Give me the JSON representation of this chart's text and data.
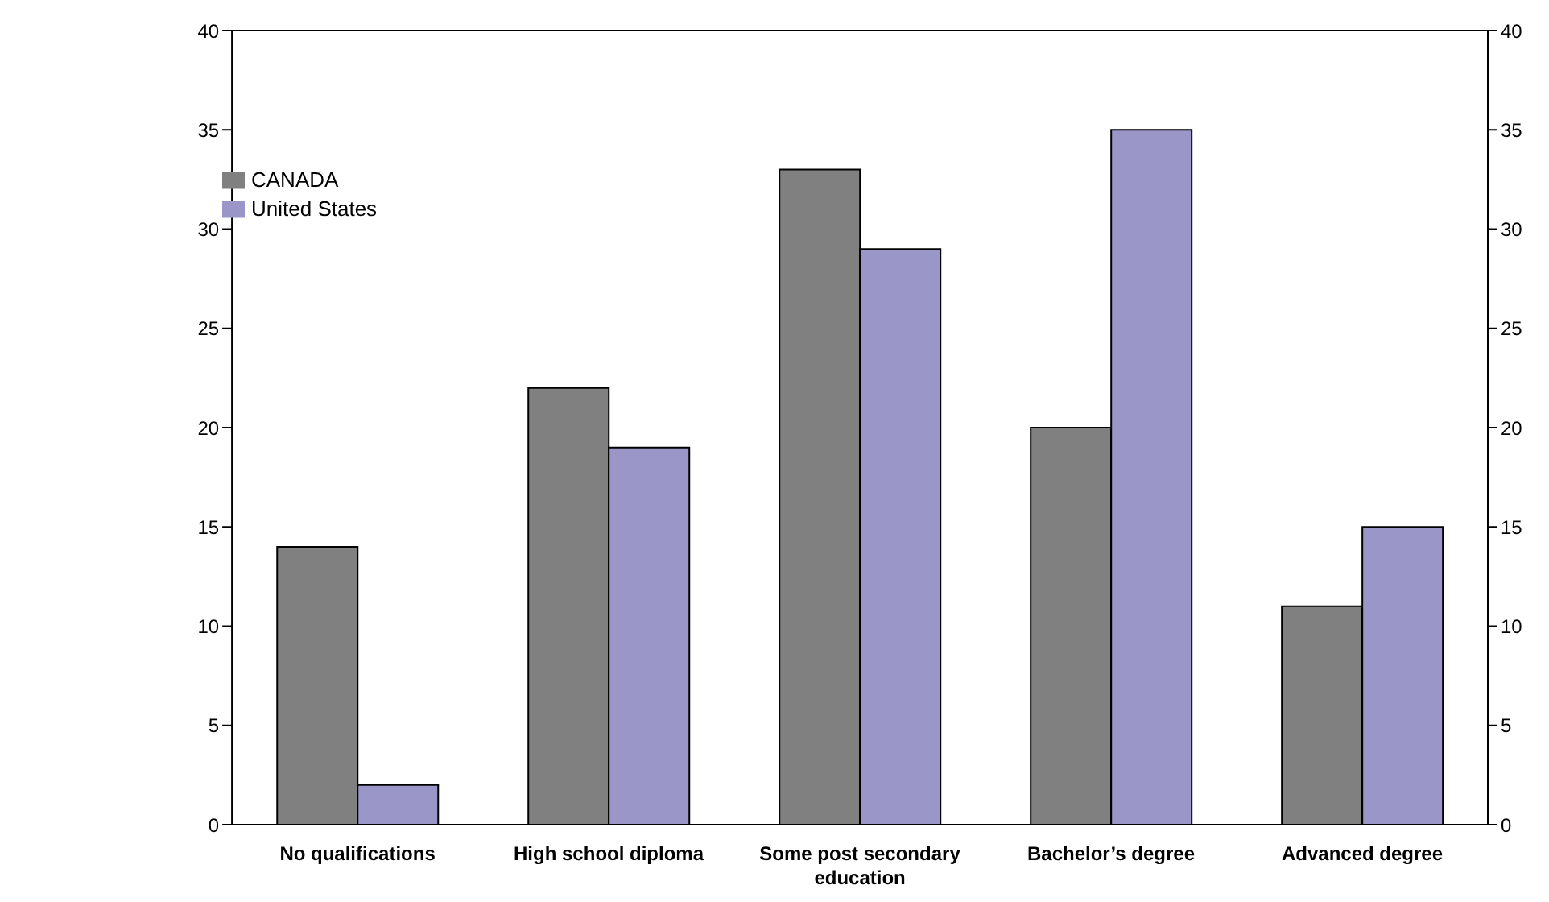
{
  "chart_data": {
    "type": "bar",
    "categories": [
      "No qualifications",
      "High school diploma",
      "Some post secondary education",
      "Bachelor’s degree",
      "Advanced degree"
    ],
    "series": [
      {
        "name": "CANADA",
        "color": "#808080",
        "values": [
          14,
          22,
          33,
          20,
          11
        ]
      },
      {
        "name": "United States",
        "color": "#9b96c8",
        "values": [
          2,
          19,
          29,
          35,
          15
        ]
      }
    ],
    "ylim": [
      0,
      40
    ],
    "yticks": [
      0,
      5,
      10,
      15,
      20,
      25,
      30,
      35,
      40
    ],
    "y2lim": [
      0,
      40
    ],
    "y2ticks": [
      0,
      5,
      10,
      15,
      20,
      25,
      30,
      35,
      40
    ],
    "grid": false,
    "legend": "top left"
  }
}
